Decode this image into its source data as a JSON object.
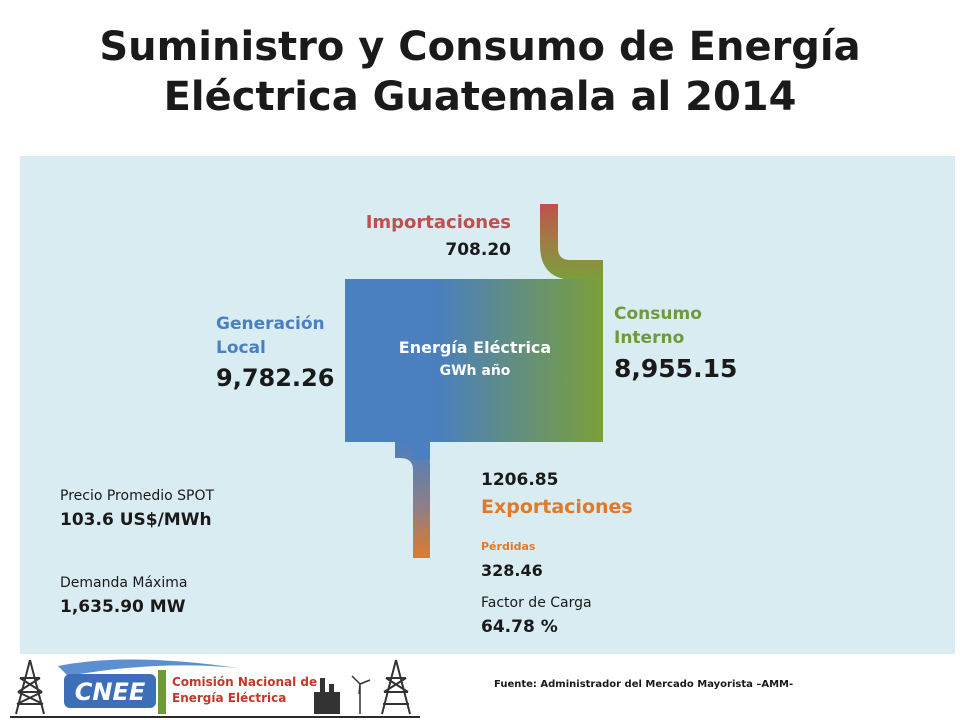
{
  "title": {
    "line1": "Suministro y Consumo de Energía",
    "line2": "Eléctrica Guatemala al 2014"
  },
  "center": {
    "label1": "Energía Eléctrica",
    "label2": "GWh año"
  },
  "importaciones": {
    "label": "Importaciones",
    "value": "708.20"
  },
  "generacion": {
    "label1": "Generación",
    "label2": "Local",
    "value": "9,782.26"
  },
  "consumo": {
    "label1": "Consumo",
    "label2": "Interno",
    "value": "8,955.15"
  },
  "exportaciones": {
    "value": "1206.85",
    "label": "Exportaciones"
  },
  "perdidas": {
    "label": "Pérdidas",
    "value": "328.46"
  },
  "factor": {
    "label": "Factor de Carga",
    "value": "64.78 %"
  },
  "precio": {
    "label": "Precio Promedio SPOT",
    "value": "103.6 US$/MWh"
  },
  "demanda": {
    "label": "Demanda Máxima",
    "value": "1,635.90 MW"
  },
  "logo": {
    "line1": "Comisión Nacional de",
    "line2": "Energía Eléctrica",
    "acronym": "CNEE"
  },
  "fuente": "Fuente: Administrador del Mercado Mayorista –AMM-",
  "colors": {
    "generation": "#4a7fc0",
    "consumption": "#7a9f3a",
    "imports": "#c0504d",
    "exports": "#e07a2a",
    "panel": "#d8ecf2"
  }
}
